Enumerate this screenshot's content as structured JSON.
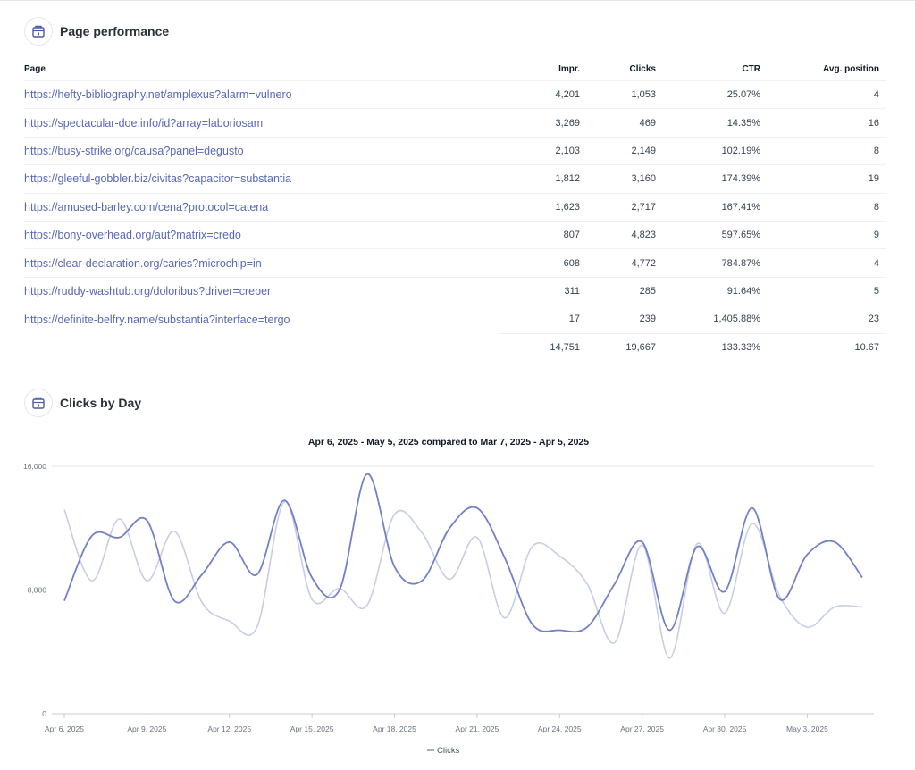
{
  "performance": {
    "title": "Page performance",
    "icon": "page-icon",
    "columns": {
      "page": "Page",
      "impr": "Impr.",
      "clicks": "Clicks",
      "ctr": "CTR",
      "avg_position": "Avg. position"
    },
    "rows": [
      {
        "page": "https://hefty-bibliography.net/amplexus?alarm=vulnero",
        "impr": "4,201",
        "clicks": "1,053",
        "ctr": "25.07%",
        "avg_position": "4"
      },
      {
        "page": "https://spectacular-doe.info/id?array=laboriosam",
        "impr": "3,269",
        "clicks": "469",
        "ctr": "14.35%",
        "avg_position": "16"
      },
      {
        "page": "https://busy-strike.org/causa?panel=degusto",
        "impr": "2,103",
        "clicks": "2,149",
        "ctr": "102.19%",
        "avg_position": "8"
      },
      {
        "page": "https://gleeful-gobbler.biz/civitas?capacitor=substantia",
        "impr": "1,812",
        "clicks": "3,160",
        "ctr": "174.39%",
        "avg_position": "19"
      },
      {
        "page": "https://amused-barley.com/cena?protocol=catena",
        "impr": "1,623",
        "clicks": "2,717",
        "ctr": "167.41%",
        "avg_position": "8"
      },
      {
        "page": "https://bony-overhead.org/aut?matrix=credo",
        "impr": "807",
        "clicks": "4,823",
        "ctr": "597.65%",
        "avg_position": "9"
      },
      {
        "page": "https://clear-declaration.org/caries?microchip=in",
        "impr": "608",
        "clicks": "4,772",
        "ctr": "784.87%",
        "avg_position": "4"
      },
      {
        "page": "https://ruddy-washtub.org/doloribus?driver=creber",
        "impr": "311",
        "clicks": "285",
        "ctr": "91.64%",
        "avg_position": "5"
      },
      {
        "page": "https://definite-belfry.name/substantia?interface=tergo",
        "impr": "17",
        "clicks": "239",
        "ctr": "1,405.88%",
        "avg_position": "23"
      }
    ],
    "totals": {
      "impr": "14,751",
      "clicks": "19,667",
      "ctr": "133.33%",
      "avg_position": "10.67"
    }
  },
  "clicks_section": {
    "title": "Clicks by Day",
    "icon": "page-icon"
  },
  "chart_data": {
    "type": "line",
    "title": "Apr 6, 2025 - May 5, 2025 compared to Mar 7, 2025 - Apr 5, 2025",
    "y_ticks": [
      "0",
      "8,000",
      "16,000"
    ],
    "ylim": [
      0,
      16000
    ],
    "x": [
      "Apr 6",
      "Apr 7",
      "Apr 8",
      "Apr 9",
      "Apr 10",
      "Apr 11",
      "Apr 12",
      "Apr 13",
      "Apr 14",
      "Apr 15",
      "Apr 16",
      "Apr 17",
      "Apr 18",
      "Apr 19",
      "Apr 20",
      "Apr 21",
      "Apr 22",
      "Apr 23",
      "Apr 24",
      "Apr 25",
      "Apr 26",
      "Apr 27",
      "Apr 28",
      "Apr 29",
      "Apr 30",
      "May 1",
      "May 2",
      "May 3",
      "May 4",
      "May 5"
    ],
    "x_tick_labels": [
      "Apr 6, 2025",
      "Apr 9, 2025",
      "Apr 12, 2025",
      "Apr 15, 2025",
      "Apr 18, 2025",
      "Apr 21, 2025",
      "Apr 24, 2025",
      "Apr 27, 2025",
      "Apr 30, 2025",
      "May 3, 2025"
    ],
    "series": [
      {
        "name": "Clicks",
        "role": "current",
        "color": "#7280c9",
        "values": [
          7300,
          11500,
          11400,
          12500,
          7300,
          9000,
          11100,
          9000,
          13800,
          8800,
          8000,
          15500,
          9500,
          8600,
          12000,
          13300,
          10100,
          5800,
          5400,
          5600,
          8400,
          11100,
          5400,
          10800,
          7900,
          13300,
          7400,
          10300,
          11100,
          8800
        ]
      },
      {
        "role": "previous",
        "color": "#c8cde6",
        "values": [
          13200,
          8600,
          12600,
          8600,
          11800,
          7200,
          6000,
          5600,
          13700,
          7400,
          8100,
          7000,
          12900,
          11700,
          8700,
          11400,
          6200,
          10800,
          10200,
          8400,
          4600,
          10900,
          3600,
          11000,
          6500,
          12300,
          7600,
          5600,
          6900,
          6900
        ]
      }
    ],
    "legend": [
      "Clicks"
    ],
    "legend_position": "bottom-center"
  }
}
